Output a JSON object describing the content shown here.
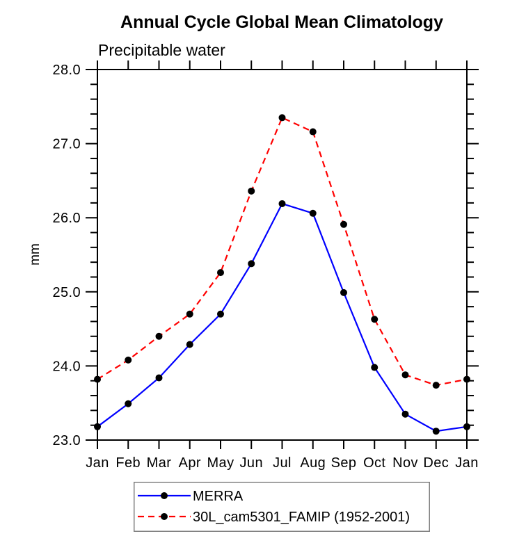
{
  "chart_data": {
    "type": "line",
    "title": "Annual Cycle Global Mean Climatology",
    "subtitle": "Precipitable water",
    "ylabel": "mm",
    "xlabel": "",
    "x_categories": [
      "Jan",
      "Feb",
      "Mar",
      "Apr",
      "May",
      "Jun",
      "Jul",
      "Aug",
      "Sep",
      "Oct",
      "Nov",
      "Dec",
      "Jan"
    ],
    "ylim": [
      23.0,
      28.0
    ],
    "ytick_labels": [
      "23.0",
      "24.0",
      "25.0",
      "26.0",
      "27.0",
      "28.0"
    ],
    "minor_tick_step": 0.2,
    "grid": false,
    "legend_position": "bottom",
    "series": [
      {
        "name": "MERRA",
        "color": "#0000ff",
        "line_style": "solid",
        "marker": "filled-circle",
        "marker_color": "#000000",
        "values": [
          23.18,
          23.49,
          23.84,
          24.29,
          24.7,
          25.38,
          26.19,
          26.06,
          24.99,
          23.98,
          23.35,
          23.12,
          23.18
        ]
      },
      {
        "name": "30L_cam5301_FAMIP (1952-2001)",
        "color": "#ff0000",
        "line_style": "dashed",
        "marker": "filled-circle",
        "marker_color": "#000000",
        "values": [
          23.82,
          24.08,
          24.4,
          24.7,
          25.26,
          26.36,
          27.35,
          27.16,
          25.91,
          24.63,
          23.88,
          23.74,
          23.82
        ]
      }
    ]
  },
  "colors": {
    "axis": "#000000",
    "background": "#ffffff",
    "series_blue": "#0000ff",
    "series_red": "#ff0000",
    "marker": "#000000",
    "legend_border": "#808080"
  }
}
